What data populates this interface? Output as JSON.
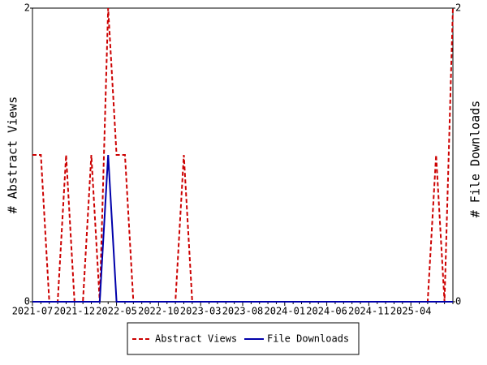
{
  "chart_data": {
    "type": "line",
    "y_label": "# Abstract Views",
    "y2_label": "# File Downloads",
    "categories": [
      "2021-07",
      null,
      null,
      null,
      null,
      "2021-12",
      null,
      null,
      null,
      null,
      "2022-05",
      null,
      null,
      null,
      null,
      "2022-10",
      null,
      null,
      null,
      null,
      "2023-03",
      null,
      null,
      null,
      null,
      "2023-08",
      null,
      null,
      null,
      null,
      "2024-01",
      null,
      null,
      null,
      null,
      "2024-06",
      null,
      null,
      null,
      null,
      "2024-11",
      null,
      null,
      null,
      null,
      "2025-04",
      null,
      null,
      null,
      null,
      null
    ],
    "series": [
      {
        "name": "Abstract Views",
        "color": "#cc0000",
        "dash": true,
        "axis": "y",
        "values": [
          1,
          1,
          0,
          0,
          1,
          0,
          0,
          1,
          0,
          2,
          1,
          1,
          0,
          0,
          0,
          0,
          0,
          0,
          1,
          0,
          0,
          0,
          0,
          0,
          0,
          0,
          0,
          0,
          0,
          0,
          0,
          0,
          0,
          0,
          0,
          0,
          0,
          0,
          0,
          0,
          0,
          0,
          0,
          0,
          0,
          0,
          0,
          0,
          1,
          0,
          2
        ]
      },
      {
        "name": "File Downloads",
        "color": "#0000aa",
        "dash": false,
        "axis": "y2",
        "values": [
          0,
          0,
          0,
          0,
          0,
          0,
          0,
          0,
          0,
          1,
          0,
          0,
          0,
          0,
          0,
          0,
          0,
          0,
          0,
          0,
          0,
          0,
          0,
          0,
          0,
          0,
          0,
          0,
          0,
          0,
          0,
          0,
          0,
          0,
          0,
          0,
          0,
          0,
          0,
          0,
          0,
          0,
          0,
          0,
          0,
          0,
          0,
          0,
          0,
          0,
          0
        ]
      }
    ],
    "ylim": [
      0,
      2
    ],
    "yticks": [
      0,
      2
    ],
    "y2lim": [
      0,
      2
    ],
    "y2ticks": [
      0,
      2
    ],
    "legend": "bottom"
  }
}
